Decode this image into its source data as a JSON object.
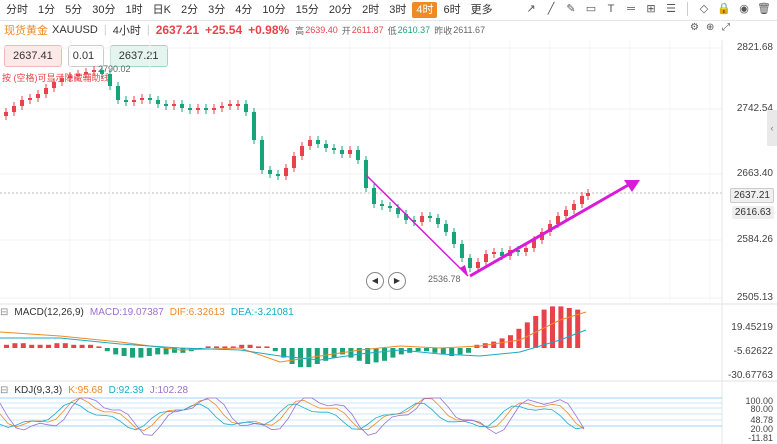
{
  "timeframes": [
    "分时",
    "1分",
    "5分",
    "30分",
    "1时",
    "日K",
    "2分",
    "3分",
    "4分",
    "10分",
    "15分",
    "20分",
    "2时",
    "3时",
    "4时",
    "6时",
    "更多"
  ],
  "active_timeframe": "4时",
  "tool_icons": [
    "arrow-icon",
    "line-icon",
    "pencil-icon",
    "rect-icon",
    "text-icon",
    "horizontal-line-icon",
    "measure-icon",
    "fib-icon",
    "eraser-icon",
    "lock-icon",
    "eye-icon",
    "trash-icon"
  ],
  "info": {
    "symbol": "现货黄金",
    "code": "XAUUSD",
    "interval": "4小时",
    "price": "2637.21",
    "change": "+25.54",
    "change_pct": "+0.98%",
    "high_label": "高",
    "high": "2639.40",
    "open_label": "开",
    "open": "2611.87",
    "low_label": "低",
    "low": "2610.37",
    "prev_label": "昨收",
    "prev": "2611.67"
  },
  "order": {
    "sell": "2637.41",
    "qty": "0.01",
    "buy": "2637.21"
  },
  "hint": "按 (空格)可显示隐藏辅助线",
  "price_axis": [
    "2821.68",
    "2742.54",
    "2663.40",
    "2584.26",
    "2505.13"
  ],
  "current_price_tag": "2637.21",
  "prev_price_tag": "2616.63",
  "annotations": {
    "high": "2790.02",
    "low": "2536.78"
  },
  "macd": {
    "label": "MACD(12,26,9)",
    "macd": "MACD:19.07387",
    "dif": "DIF:6.32613",
    "dea": "DEA:-3.21081",
    "axis": [
      "19.45219",
      "-5.62622",
      "-30.67763"
    ]
  },
  "kdj": {
    "label": "KDJ(9,3,3)",
    "k": "K:95.68",
    "d": "D:92.39",
    "j": "J:102.28",
    "axis": [
      "100.00",
      "80.00",
      "48.78",
      "20.00",
      "-11.81"
    ]
  },
  "colors": {
    "up": "#e8434b",
    "down": "#1aa37a",
    "accent": "#f08a24",
    "trend": "#d81bd8"
  }
}
